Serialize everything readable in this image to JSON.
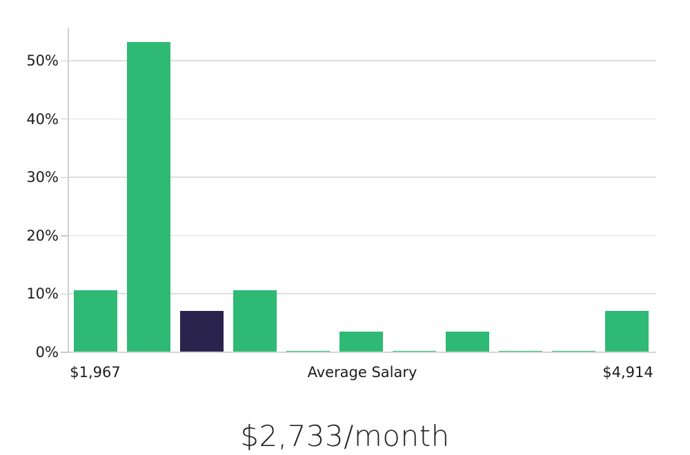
{
  "chart_data": {
    "type": "bar",
    "subtype": "histogram",
    "title": "$2,733/month",
    "xlabel": "Average Salary",
    "ylabel": "",
    "x_labels": {
      "min": "$1,967",
      "axis_title": "Average Salary",
      "max": "$4,914"
    },
    "bin_count": 11,
    "values": [
      10.7,
      53.2,
      7.1,
      10.7,
      0.25,
      3.5,
      0.25,
      3.5,
      0.25,
      0.25,
      7.1
    ],
    "highlight_index": 2,
    "y_tick_values": [
      0,
      10,
      20,
      30,
      40,
      50
    ],
    "y_tick_labels": [
      "0%",
      "10%",
      "20%",
      "30%",
      "40%",
      "50%"
    ],
    "ylim": [
      0,
      55.7
    ],
    "grid": "horizontal",
    "legend": "none",
    "colors": {
      "bar_green": "#2eba74",
      "bar_navy": "#29234e",
      "grid_line": "#dedede",
      "axis_line": "#cfcfcf",
      "text": "#1c1c1c"
    }
  }
}
